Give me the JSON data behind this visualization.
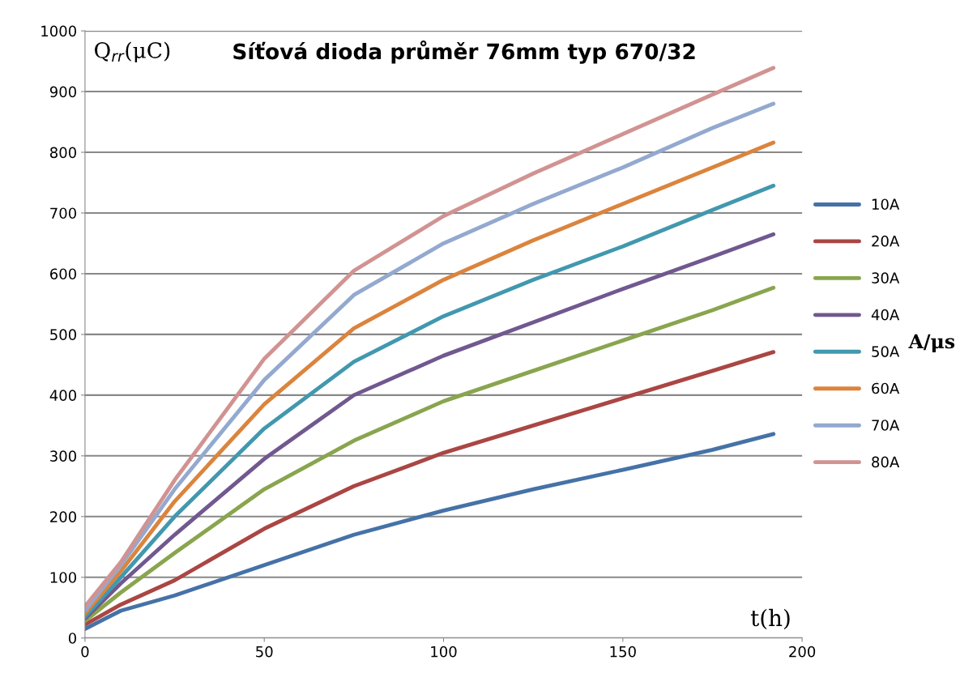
{
  "chart_data": {
    "type": "line",
    "title": "Síťová dioda průměr 76mm typ 670/32",
    "xlabel": "t(h)",
    "ylabel": "Q$_{rr}$(μC)",
    "legend_title": "A/μs",
    "xlim": [
      0,
      200
    ],
    "xticks": [
      0,
      50,
      100,
      150,
      200
    ],
    "ylim": [
      0,
      1000
    ],
    "yticks": [
      0,
      100,
      200,
      300,
      400,
      500,
      600,
      700,
      800,
      900,
      1000
    ],
    "grid": "y",
    "legend": "right",
    "marker": "none",
    "line_style": "solid",
    "x": [
      0,
      10,
      25,
      50,
      75,
      100,
      125,
      150,
      175,
      192
    ],
    "series": [
      {
        "name": "10A",
        "color": "#4572a7",
        "values": [
          15,
          45,
          70,
          120,
          170,
          210,
          245,
          277,
          310,
          336
        ]
      },
      {
        "name": "20A",
        "color": "#aa4643",
        "values": [
          22,
          55,
          95,
          180,
          250,
          305,
          350,
          395,
          440,
          471
        ]
      },
      {
        "name": "30A",
        "color": "#89a54e",
        "values": [
          28,
          75,
          140,
          245,
          325,
          390,
          440,
          490,
          540,
          577
        ]
      },
      {
        "name": "40A",
        "color": "#71588f",
        "values": [
          32,
          90,
          170,
          295,
          400,
          465,
          520,
          575,
          628,
          665
        ]
      },
      {
        "name": "50A",
        "color": "#4198af",
        "values": [
          35,
          100,
          200,
          345,
          455,
          530,
          590,
          645,
          705,
          745
        ]
      },
      {
        "name": "60A",
        "color": "#db843d",
        "values": [
          40,
          110,
          225,
          385,
          510,
          590,
          655,
          715,
          775,
          816
        ]
      },
      {
        "name": "70A",
        "color": "#93a9cf",
        "values": [
          45,
          120,
          245,
          425,
          565,
          650,
          715,
          775,
          840,
          880
        ]
      },
      {
        "name": "80A",
        "color": "#d19392",
        "values": [
          52,
          125,
          260,
          460,
          605,
          695,
          765,
          830,
          895,
          939
        ]
      }
    ]
  }
}
